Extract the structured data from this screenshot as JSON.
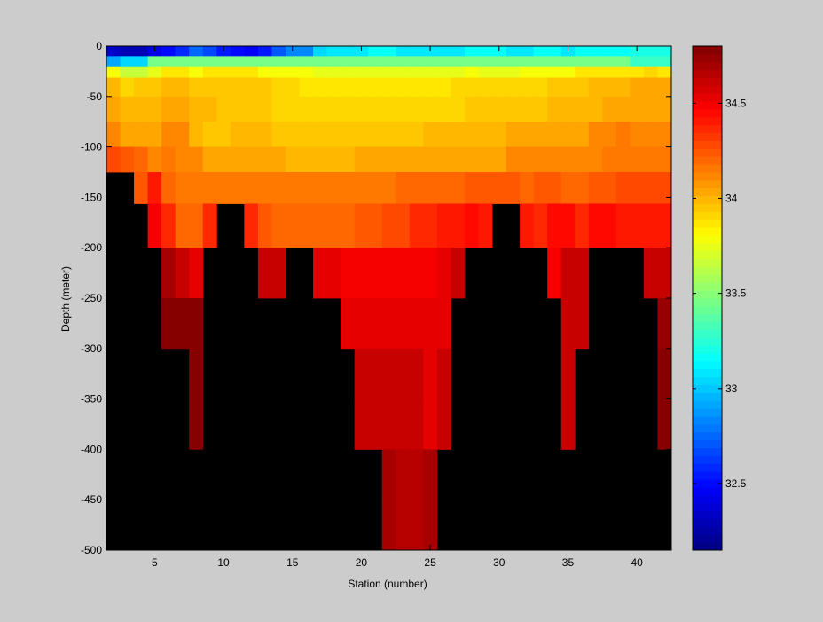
{
  "chart_data": {
    "type": "heatmap",
    "title": "",
    "xlabel": "Station (number)",
    "ylabel": "Depth (meter)",
    "xlim": [
      1.5,
      42.5
    ],
    "ylim": [
      -500,
      0
    ],
    "xticks": [
      5,
      10,
      15,
      20,
      25,
      30,
      35,
      40
    ],
    "yticks": [
      0,
      -50,
      -100,
      -150,
      -200,
      -250,
      -300,
      -350,
      -400,
      -450,
      -500
    ],
    "stations": [
      2,
      3,
      4,
      5,
      6,
      7,
      8,
      9,
      10,
      11,
      12,
      13,
      14,
      15,
      16,
      17,
      18,
      19,
      20,
      21,
      22,
      23,
      24,
      25,
      26,
      27,
      28,
      29,
      30,
      31,
      32,
      33,
      34,
      35,
      36,
      37,
      38,
      39,
      40,
      41,
      42
    ],
    "depths": [
      -5,
      -15,
      -25,
      -37.5,
      -62.5,
      -87.5,
      -112.5,
      -137.5,
      -175,
      -225,
      -275,
      -325,
      -375,
      -425,
      -475
    ],
    "values": [
      [
        32.35,
        32.3,
        32.3,
        32.4,
        32.5,
        32.6,
        32.75,
        32.65,
        32.55,
        32.5,
        32.45,
        32.55,
        32.7,
        32.85,
        32.85,
        33.05,
        33.1,
        33.1,
        33.1,
        33.15,
        33.15,
        33.1,
        33.1,
        33.1,
        33.1,
        33.1,
        33.15,
        33.15,
        33.15,
        33.1,
        33.1,
        33.15,
        33.15,
        33.1,
        33.15,
        33.15,
        33.15,
        33.15,
        33.2,
        33.2,
        33.2
      ],
      [
        32.9,
        33.05,
        33.05,
        33.45,
        33.45,
        33.45,
        33.45,
        33.45,
        33.45,
        33.45,
        33.45,
        33.45,
        33.45,
        33.45,
        33.45,
        33.45,
        33.45,
        33.45,
        33.45,
        33.45,
        33.45,
        33.45,
        33.45,
        33.45,
        33.45,
        33.45,
        33.45,
        33.45,
        33.45,
        33.45,
        33.45,
        33.45,
        33.45,
        33.45,
        33.45,
        33.45,
        33.45,
        33.45,
        33.3,
        33.3,
        33.3
      ],
      [
        33.8,
        33.65,
        33.65,
        33.75,
        33.85,
        33.85,
        33.8,
        33.85,
        33.85,
        33.85,
        33.85,
        33.8,
        33.8,
        33.8,
        33.8,
        33.75,
        33.75,
        33.75,
        33.75,
        33.75,
        33.75,
        33.75,
        33.75,
        33.75,
        33.75,
        33.75,
        33.8,
        33.75,
        33.75,
        33.75,
        33.8,
        33.8,
        33.8,
        33.8,
        33.85,
        33.85,
        33.85,
        33.85,
        33.85,
        33.9,
        33.85
      ],
      [
        34.0,
        33.9,
        33.95,
        33.95,
        34.0,
        34.0,
        33.95,
        33.95,
        33.95,
        33.95,
        33.95,
        33.95,
        33.9,
        33.9,
        33.85,
        33.85,
        33.85,
        33.85,
        33.85,
        33.85,
        33.85,
        33.85,
        33.85,
        33.85,
        33.85,
        33.9,
        33.9,
        33.9,
        33.9,
        33.9,
        33.9,
        33.9,
        33.95,
        33.95,
        33.95,
        34.0,
        34.0,
        34.0,
        34.05,
        34.05,
        34.05
      ],
      [
        34.05,
        34.0,
        34.0,
        34.0,
        34.05,
        34.05,
        34.0,
        34.0,
        33.95,
        33.95,
        33.95,
        33.95,
        33.9,
        33.9,
        33.9,
        33.9,
        33.9,
        33.9,
        33.9,
        33.9,
        33.9,
        33.9,
        33.9,
        33.9,
        33.9,
        33.9,
        33.95,
        33.95,
        33.95,
        33.95,
        33.95,
        33.95,
        34.0,
        34.0,
        34.0,
        34.0,
        34.05,
        34.05,
        34.05,
        34.05,
        34.05
      ],
      [
        34.1,
        34.05,
        34.05,
        34.05,
        34.1,
        34.1,
        34.0,
        33.95,
        33.95,
        34.0,
        34.0,
        34.0,
        33.95,
        33.95,
        33.95,
        33.95,
        33.95,
        33.95,
        33.95,
        33.95,
        33.95,
        33.95,
        33.95,
        34.0,
        34.0,
        34.0,
        34.0,
        34.0,
        34.0,
        34.05,
        34.05,
        34.05,
        34.05,
        34.05,
        34.05,
        34.1,
        34.1,
        34.15,
        34.1,
        34.1,
        34.1
      ],
      [
        34.3,
        34.25,
        34.2,
        34.1,
        34.15,
        34.1,
        34.1,
        34.05,
        34.05,
        34.05,
        34.05,
        34.05,
        34.05,
        34.0,
        34.0,
        34.0,
        34.0,
        34.0,
        34.05,
        34.05,
        34.05,
        34.05,
        34.05,
        34.05,
        34.05,
        34.05,
        34.05,
        34.05,
        34.05,
        34.1,
        34.1,
        34.1,
        34.1,
        34.1,
        34.1,
        34.1,
        34.15,
        34.15,
        34.15,
        34.15,
        34.15
      ],
      [
        null,
        null,
        34.25,
        34.4,
        34.2,
        34.15,
        34.15,
        34.15,
        34.15,
        34.15,
        34.15,
        34.15,
        34.15,
        34.15,
        34.15,
        34.15,
        34.15,
        34.15,
        34.15,
        34.15,
        34.15,
        34.2,
        34.2,
        34.2,
        34.2,
        34.2,
        34.25,
        34.25,
        34.25,
        34.25,
        34.2,
        34.25,
        34.25,
        34.2,
        34.2,
        34.25,
        34.25,
        34.3,
        34.3,
        34.3,
        34.3
      ],
      [
        null,
        null,
        null,
        34.5,
        34.35,
        34.2,
        34.2,
        34.35,
        null,
        null,
        34.35,
        34.25,
        34.2,
        34.2,
        34.2,
        34.2,
        34.2,
        34.2,
        34.25,
        34.25,
        34.3,
        34.3,
        34.35,
        34.35,
        34.4,
        34.4,
        34.45,
        34.4,
        null,
        null,
        34.4,
        34.35,
        34.45,
        34.45,
        34.35,
        34.45,
        34.45,
        34.4,
        34.4,
        34.4,
        34.4
      ],
      [
        null,
        null,
        null,
        null,
        34.7,
        34.6,
        34.55,
        null,
        null,
        null,
        null,
        34.6,
        34.6,
        null,
        null,
        34.55,
        34.55,
        34.5,
        34.5,
        34.5,
        34.5,
        34.5,
        34.5,
        34.5,
        34.55,
        34.6,
        null,
        null,
        null,
        null,
        null,
        null,
        34.5,
        34.6,
        34.6,
        null,
        null,
        null,
        null,
        34.6,
        34.6
      ],
      [
        null,
        null,
        null,
        null,
        34.8,
        34.8,
        34.8,
        null,
        null,
        null,
        null,
        null,
        null,
        null,
        null,
        null,
        null,
        34.55,
        34.55,
        34.55,
        34.55,
        34.55,
        34.55,
        34.55,
        34.55,
        null,
        null,
        null,
        null,
        null,
        null,
        null,
        null,
        34.6,
        34.6,
        null,
        null,
        null,
        null,
        null,
        34.75
      ],
      [
        null,
        null,
        null,
        null,
        null,
        null,
        34.8,
        null,
        null,
        null,
        null,
        null,
        null,
        null,
        null,
        null,
        null,
        null,
        34.6,
        34.6,
        34.6,
        34.6,
        34.6,
        34.55,
        34.6,
        null,
        null,
        null,
        null,
        null,
        null,
        null,
        null,
        34.6,
        null,
        null,
        null,
        null,
        null,
        null,
        34.8
      ],
      [
        null,
        null,
        null,
        null,
        null,
        null,
        34.8,
        null,
        null,
        null,
        null,
        null,
        null,
        null,
        null,
        null,
        null,
        null,
        34.6,
        34.6,
        34.6,
        34.6,
        34.6,
        34.55,
        34.6,
        null,
        null,
        null,
        null,
        null,
        null,
        null,
        null,
        34.6,
        null,
        null,
        null,
        null,
        null,
        null,
        34.8
      ],
      [
        null,
        null,
        null,
        null,
        null,
        null,
        null,
        null,
        null,
        null,
        null,
        null,
        null,
        null,
        null,
        null,
        null,
        null,
        null,
        null,
        34.7,
        34.65,
        34.65,
        34.7,
        null,
        null,
        null,
        null,
        null,
        null,
        null,
        null,
        null,
        null,
        null,
        null,
        null,
        null,
        null,
        null,
        null
      ],
      [
        null,
        null,
        null,
        null,
        null,
        null,
        null,
        null,
        null,
        null,
        null,
        null,
        null,
        null,
        null,
        null,
        null,
        null,
        null,
        null,
        34.7,
        34.65,
        34.65,
        34.7,
        null,
        null,
        null,
        null,
        null,
        null,
        null,
        null,
        null,
        null,
        null,
        null,
        null,
        null,
        null,
        null,
        null
      ]
    ],
    "colorbar": {
      "range": [
        32.15,
        34.8
      ],
      "ticks": [
        32.5,
        33,
        33.5,
        34,
        34.5
      ],
      "colormap": "jet"
    },
    "missing_color": "#000000",
    "grid": false
  }
}
